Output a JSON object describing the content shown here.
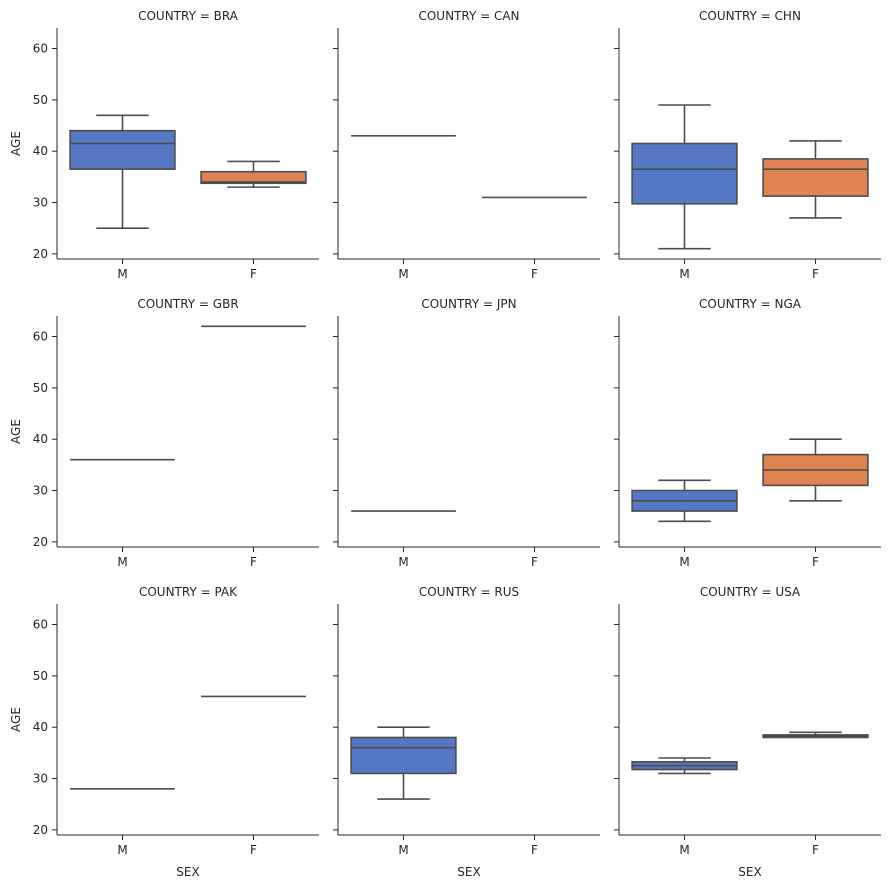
{
  "chart_data": {
    "type": "box",
    "xlabel": "SEX",
    "ylabel": "AGE",
    "ylim": [
      19,
      64
    ],
    "yticks": [
      20,
      30,
      40,
      50,
      60
    ],
    "categories": [
      "M",
      "F"
    ],
    "colors": {
      "M": "#5478c4",
      "F": "#dd8452"
    },
    "line_color": "#4d4d4d",
    "facet_title_prefix": "COUNTRY = ",
    "facets": [
      {
        "country": "BRA",
        "title": "COUNTRY = BRA",
        "boxes": [
          {
            "sex": "M",
            "min": 25,
            "q1": 36.5,
            "median": 41.5,
            "q3": 44,
            "max": 47
          },
          {
            "sex": "F",
            "min": 33,
            "q1": 33.75,
            "median": 34,
            "q3": 36,
            "max": 38
          }
        ]
      },
      {
        "country": "CAN",
        "title": "COUNTRY = CAN",
        "boxes": [
          {
            "sex": "M",
            "min": 43,
            "q1": 43,
            "median": 43,
            "q3": 43,
            "max": 43
          },
          {
            "sex": "F",
            "min": 31,
            "q1": 31,
            "median": 31,
            "q3": 31,
            "max": 31
          }
        ]
      },
      {
        "country": "CHN",
        "title": "COUNTRY = CHN",
        "boxes": [
          {
            "sex": "M",
            "min": 21,
            "q1": 29.75,
            "median": 36.5,
            "q3": 41.5,
            "max": 49
          },
          {
            "sex": "F",
            "min": 27,
            "q1": 31.25,
            "median": 36.5,
            "q3": 38.5,
            "max": 42
          }
        ]
      },
      {
        "country": "GBR",
        "title": "COUNTRY = GBR",
        "boxes": [
          {
            "sex": "M",
            "min": 36,
            "q1": 36,
            "median": 36,
            "q3": 36,
            "max": 36
          },
          {
            "sex": "F",
            "min": 62,
            "q1": 62,
            "median": 62,
            "q3": 62,
            "max": 62
          }
        ]
      },
      {
        "country": "JPN",
        "title": "COUNTRY = JPN",
        "boxes": [
          {
            "sex": "M",
            "min": 26,
            "q1": 26,
            "median": 26,
            "q3": 26,
            "max": 26
          }
        ]
      },
      {
        "country": "NGA",
        "title": "COUNTRY = NGA",
        "boxes": [
          {
            "sex": "M",
            "min": 24,
            "q1": 26,
            "median": 28,
            "q3": 30,
            "max": 32
          },
          {
            "sex": "F",
            "min": 28,
            "q1": 31,
            "median": 34,
            "q3": 37,
            "max": 40
          }
        ]
      },
      {
        "country": "PAK",
        "title": "COUNTRY = PAK",
        "boxes": [
          {
            "sex": "M",
            "min": 28,
            "q1": 28,
            "median": 28,
            "q3": 28,
            "max": 28
          },
          {
            "sex": "F",
            "min": 46,
            "q1": 46,
            "median": 46,
            "q3": 46,
            "max": 46
          }
        ]
      },
      {
        "country": "RUS",
        "title": "COUNTRY = RUS",
        "boxes": [
          {
            "sex": "M",
            "min": 26,
            "q1": 31,
            "median": 36,
            "q3": 38,
            "max": 40
          }
        ]
      },
      {
        "country": "USA",
        "title": "COUNTRY = USA",
        "boxes": [
          {
            "sex": "M",
            "min": 31,
            "q1": 31.75,
            "median": 32.5,
            "q3": 33.25,
            "max": 34
          },
          {
            "sex": "F",
            "min": 38,
            "q1": 38,
            "median": 38.25,
            "q3": 38.5,
            "max": 39
          }
        ]
      }
    ]
  }
}
